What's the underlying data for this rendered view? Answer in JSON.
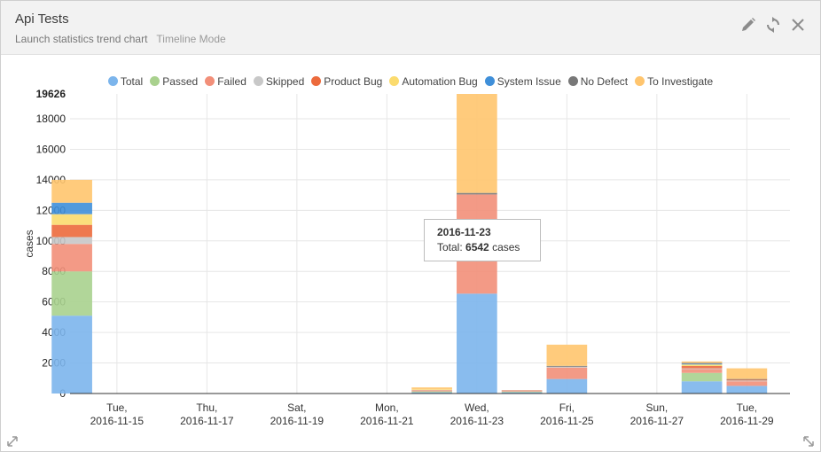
{
  "widget": {
    "title": "Api Tests",
    "subtitle": "Launch statistics trend chart",
    "mode": "Timeline Mode",
    "icons": [
      "pencil-icon",
      "refresh-icon",
      "close-icon"
    ],
    "resize_icons": [
      "resize-left-icon",
      "resize-right-icon"
    ]
  },
  "chart_data": {
    "type": "bar",
    "stacked": true,
    "ylabel": "cases",
    "ylim": [
      0,
      19626
    ],
    "yticks": [
      0,
      2000,
      4000,
      6000,
      8000,
      10000,
      12000,
      14000,
      16000,
      18000
    ],
    "ymax_label": "19626",
    "grid": true,
    "legend_position": "top",
    "x_ticks": [
      {
        "day": "Tue,",
        "date": "2016-11-15"
      },
      {
        "day": "Thu,",
        "date": "2016-11-17"
      },
      {
        "day": "Sat,",
        "date": "2016-11-19"
      },
      {
        "day": "Mon,",
        "date": "2016-11-21"
      },
      {
        "day": "Wed,",
        "date": "2016-11-23"
      },
      {
        "day": "Fri,",
        "date": "2016-11-25"
      },
      {
        "day": "Sun,",
        "date": "2016-11-27"
      },
      {
        "day": "Tue,",
        "date": "2016-11-29"
      }
    ],
    "x_range": [
      "2016-11-13T23:00",
      "2016-11-29T23:00"
    ],
    "bar_dates": [
      "2016-11-14",
      "2016-11-22",
      "2016-11-23",
      "2016-11-24",
      "2016-11-25",
      "2016-11-28",
      "2016-11-29"
    ],
    "series": [
      {
        "name": "Total",
        "color": "#7cb5ec",
        "values": [
          5100,
          80,
          6542,
          80,
          950,
          800,
          500
        ]
      },
      {
        "name": "Passed",
        "color": "#a9d18e",
        "values": [
          2900,
          60,
          0,
          50,
          0,
          550,
          0
        ]
      },
      {
        "name": "Failed",
        "color": "#f28f79",
        "values": [
          1800,
          60,
          6500,
          60,
          750,
          250,
          300
        ]
      },
      {
        "name": "Skipped",
        "color": "#c8c8c8",
        "values": [
          450,
          20,
          0,
          20,
          50,
          50,
          50
        ]
      },
      {
        "name": "Product Bug",
        "color": "#ec6a3c",
        "values": [
          800,
          20,
          0,
          20,
          0,
          150,
          50
        ]
      },
      {
        "name": "Automation Bug",
        "color": "#fbdb6e",
        "values": [
          700,
          40,
          0,
          0,
          0,
          100,
          0
        ]
      },
      {
        "name": "System Issue",
        "color": "#3f8fd9",
        "values": [
          750,
          0,
          0,
          0,
          0,
          50,
          0
        ]
      },
      {
        "name": "No Defect",
        "color": "#787878",
        "values": [
          0,
          0,
          100,
          0,
          60,
          50,
          50
        ]
      },
      {
        "name": "To Investigate",
        "color": "#ffc56e",
        "values": [
          1500,
          120,
          6484,
          0,
          1390,
          100,
          700
        ]
      }
    ],
    "tooltip": {
      "date": "2016-11-23",
      "label": "Total:",
      "value": "6542",
      "unit": "cases"
    }
  }
}
